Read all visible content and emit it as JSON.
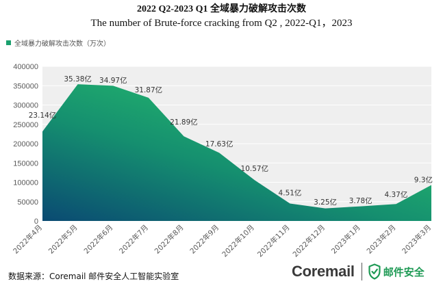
{
  "chart_data": {
    "type": "area",
    "title": "2022 Q2-2023 Q1 全域暴力破解攻击次数",
    "subtitle": "The number of Brute-force cracking from Q2 , 2022-Q1，2023",
    "categories": [
      "2022年4月",
      "2022年5月",
      "2022年6月",
      "2022年7月",
      "2022年8月",
      "2022年9月",
      "2022年10月",
      "2022年11月",
      "2022年12月",
      "2023年1月",
      "2023年2月",
      "2023年3月"
    ],
    "series": [
      {
        "name": "全域暴力破解攻击次数（万次）",
        "values": [
          231400,
          353800,
          349700,
          318700,
          218900,
          176300,
          105700,
          45100,
          32500,
          37800,
          43700,
          93000
        ],
        "data_labels": [
          "23.14亿",
          "35.38亿",
          "34.97亿",
          "31.87亿",
          "21.89亿",
          "17.63亿",
          "10.57亿",
          "4.51亿",
          "3.25亿",
          "3.78亿",
          "4.37亿",
          "9.3亿"
        ]
      }
    ],
    "yticks": [
      0,
      50000,
      100000,
      150000,
      200000,
      250000,
      300000,
      350000,
      400000
    ],
    "ylim": [
      0,
      400000
    ],
    "grid": true,
    "legend": "top-left",
    "colors": {
      "area_gradient": [
        "#0a4a72",
        "#158f6f",
        "#2bc86d"
      ],
      "legend_swatch": "#1aa06e",
      "plot_background": "#efefef",
      "gridline": "#ffffff"
    }
  },
  "footer": {
    "source": "数据来源：Coremail 邮件安全人工智能实验室"
  },
  "logo": {
    "wordmark": "Coremail",
    "tagline": "邮件安全",
    "icon": "shield-icon",
    "color": "#1f9a55"
  }
}
